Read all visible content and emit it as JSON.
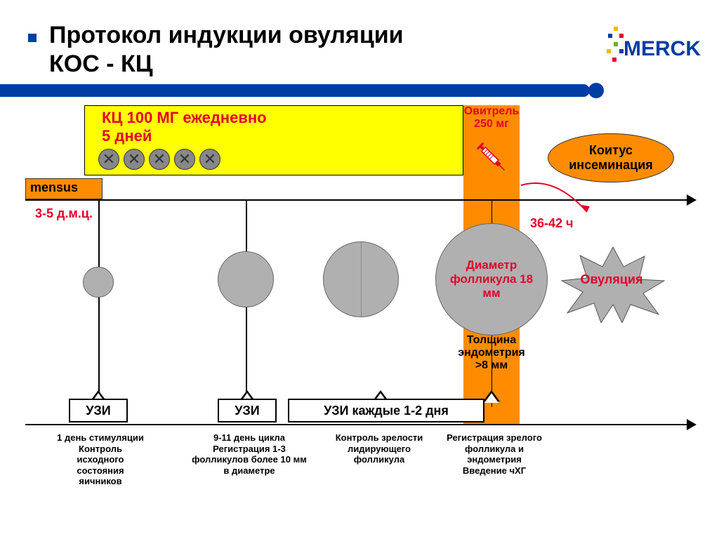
{
  "title_line1": "Протокол индукции овуляции",
  "title_line2": "КОС - КЦ",
  "logo_text": "MERCK",
  "logo_colors": [
    "#f7b500",
    "#e2002a",
    "#003da5",
    "#6ab023"
  ],
  "yellow_box": {
    "line1": "КЦ  100 МГ ежедневно",
    "line2": " 5 дней",
    "pill_count": 5
  },
  "ovitrel": {
    "line1": "Овитрель",
    "line2": "250 мг"
  },
  "coitus": "Коитус инсеминация",
  "mensus": "mensus",
  "dmc": "3-5 д.м.ц.",
  "time_label": "36-42 ч",
  "follicle4": "Диаметр фолликула 18 мм",
  "star_label": "Овуляция",
  "endo": {
    "line1": "Толщина",
    "line2": "эндометрия",
    "line3": ">8 мм"
  },
  "uzi": {
    "u1": "УЗИ",
    "u2": "УЗИ",
    "u3": "УЗИ каждые 1-2 дня"
  },
  "captions": {
    "c1": "1 день стимуляции\nКонтроль исходного состояния яичников",
    "c2": "9-11 день цикла\nРегистрация 1-3 фолликулов более 10 мм в диаметре",
    "c3": "Контроль зрелости лидирующего фолликула",
    "c4": "Регистрация зрелого фолликула и эндометрия\nВведение чХГ"
  },
  "colors": {
    "accent_blue": "#003da5",
    "accent_red": "#e2002a",
    "yellow": "#ffff00",
    "orange": "#ff8c00",
    "gray": "#b0b0b0"
  }
}
